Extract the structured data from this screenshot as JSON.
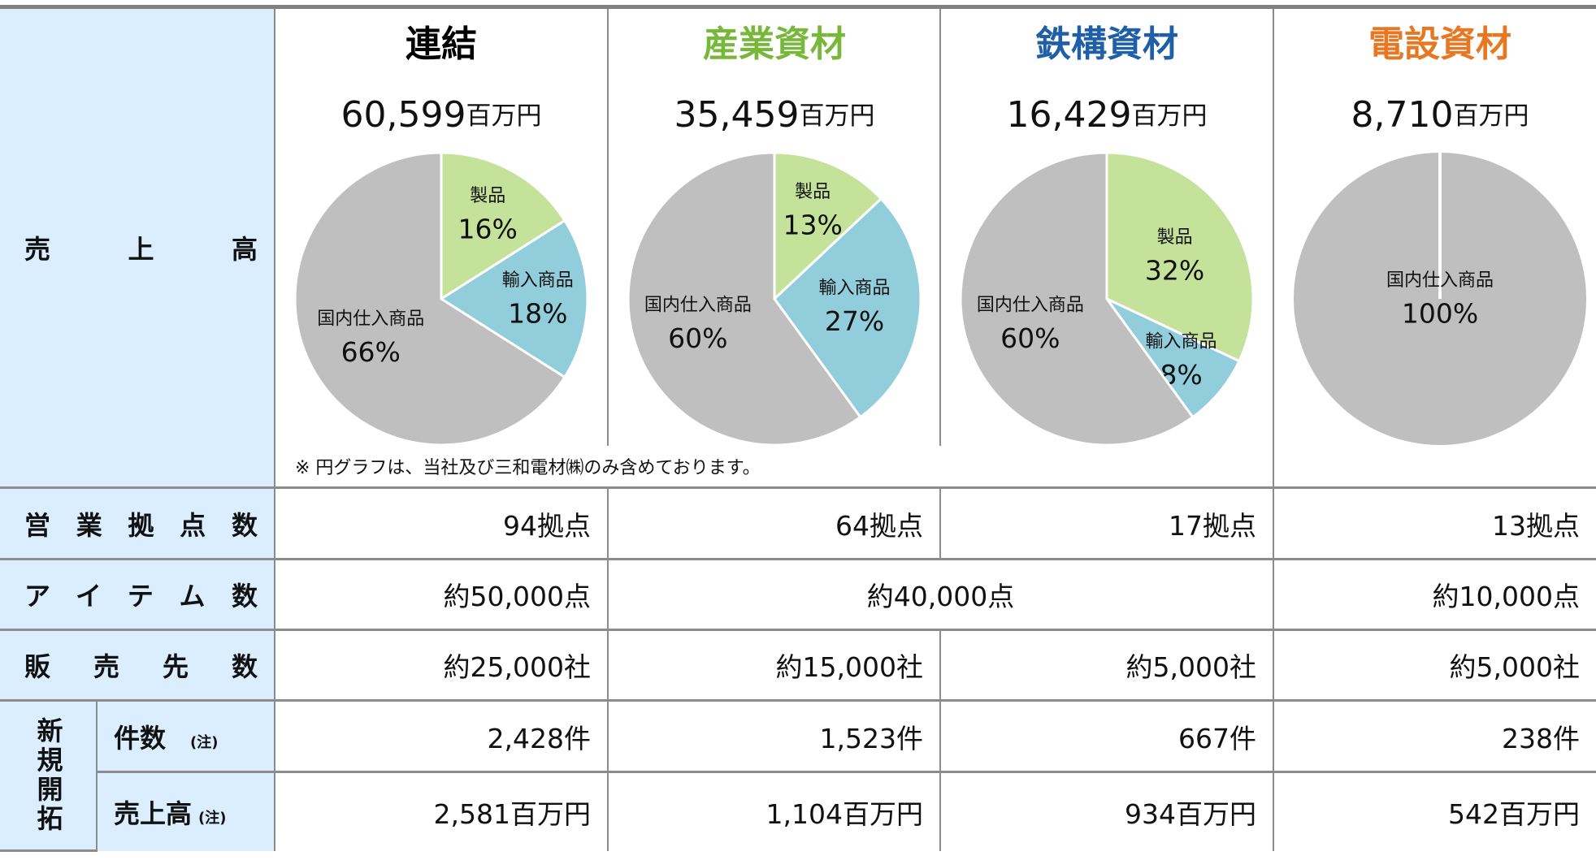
{
  "left_labels": {
    "sales": "売上高",
    "branches": "営業拠点数",
    "items": "アイテム数",
    "customers": "販売先数",
    "new": "新規開拓",
    "new_count": "件数",
    "new_sales": "売上高",
    "note_mark": "(注)"
  },
  "columns": [
    {
      "name": "連結",
      "color": "#000000",
      "sales": "60,599",
      "sales_unit": "百万円",
      "segments": [
        {
          "name": "製品",
          "value": 16,
          "value_label": "16%",
          "color": "#c4e29a"
        },
        {
          "name": "輸入商品",
          "value": 18,
          "value_label": "18%",
          "color": "#92cddc"
        },
        {
          "name": "国内仕入商品",
          "value": 66,
          "value_label": "66%",
          "color": "#bfbfbf"
        }
      ]
    },
    {
      "name": "産業資材",
      "color": "#77b83b",
      "sales": "35,459",
      "sales_unit": "百万円",
      "segments": [
        {
          "name": "製品",
          "value": 13,
          "value_label": "13%",
          "color": "#c4e29a"
        },
        {
          "name": "輸入商品",
          "value": 27,
          "value_label": "27%",
          "color": "#92cddc"
        },
        {
          "name": "国内仕入商品",
          "value": 60,
          "value_label": "60%",
          "color": "#bfbfbf"
        }
      ]
    },
    {
      "name": "鉄構資材",
      "color": "#1f5fa8",
      "sales": "16,429",
      "sales_unit": "百万円",
      "segments": [
        {
          "name": "製品",
          "value": 32,
          "value_label": "32%",
          "color": "#c4e29a"
        },
        {
          "name": "輸入商品",
          "value": 8,
          "value_label": "8%",
          "color": "#92cddc"
        },
        {
          "name": "国内仕入商品",
          "value": 60,
          "value_label": "60%",
          "color": "#bfbfbf"
        }
      ]
    },
    {
      "name": "電設資材",
      "color": "#e87722",
      "sales": "8,710",
      "sales_unit": "百万円",
      "segments": [
        {
          "name": "国内仕入商品",
          "value": 100,
          "value_label": "100%",
          "color": "#bfbfbf"
        }
      ]
    }
  ],
  "note": "※ 円グラフは、当社及び三和電材㈱のみ含めております。",
  "rows": {
    "branches": [
      "94拠点",
      "64拠点",
      "17拠点",
      "13拠点"
    ],
    "items": [
      "約50,000点",
      "約40,000点",
      "約10,000点"
    ],
    "customers": [
      "約25,000社",
      "約15,000社",
      "約5,000社",
      "約5,000社"
    ],
    "new_count": [
      "2,428件",
      "1,523件",
      "667件",
      "238件"
    ],
    "new_sales": [
      "2,581百万円",
      "1,104百万円",
      "934百万円",
      "542百万円"
    ]
  }
}
